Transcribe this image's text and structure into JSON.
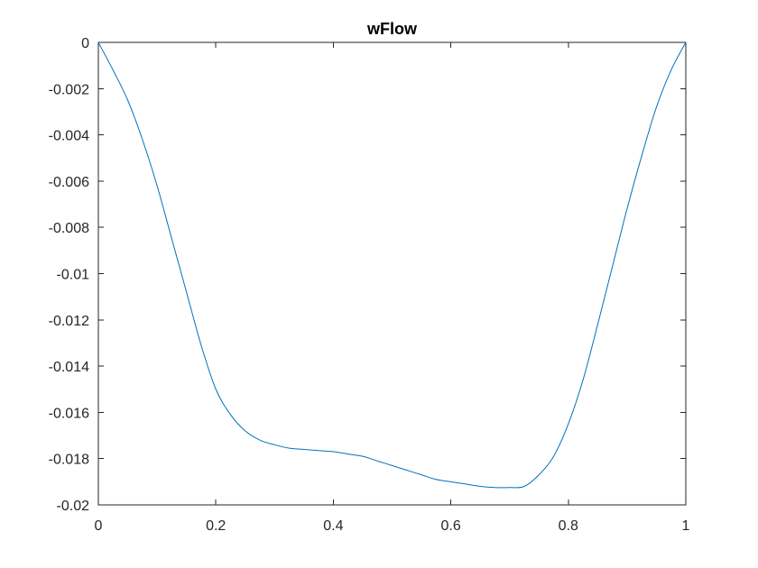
{
  "chart_data": {
    "type": "line",
    "title": "wFlow",
    "xlabel": "",
    "ylabel": "",
    "xlim": [
      0,
      1
    ],
    "ylim": [
      -0.02,
      0
    ],
    "grid": false,
    "box": true,
    "xticks": [
      0,
      0.2,
      0.4,
      0.6,
      0.8,
      1
    ],
    "xtick_labels": [
      "0",
      "0.2",
      "0.4",
      "0.6",
      "0.8",
      "1"
    ],
    "yticks": [
      0,
      -0.002,
      -0.004,
      -0.006,
      -0.008,
      -0.01,
      -0.012,
      -0.014,
      -0.016,
      -0.018,
      -0.02
    ],
    "ytick_labels": [
      "0",
      "-0.002",
      "-0.004",
      "-0.006",
      "-0.008",
      "-0.01",
      "-0.012",
      "-0.014",
      "-0.016",
      "-0.018",
      "-0.02"
    ],
    "line_color": "#0072bd",
    "series": [
      {
        "x": [
          0,
          0.025,
          0.05,
          0.075,
          0.1,
          0.125,
          0.15,
          0.175,
          0.2,
          0.225,
          0.25,
          0.275,
          0.3,
          0.325,
          0.35,
          0.375,
          0.4,
          0.425,
          0.45,
          0.475,
          0.5,
          0.525,
          0.55,
          0.575,
          0.6,
          0.625,
          0.65,
          0.675,
          0.7,
          0.725,
          0.75,
          0.775,
          0.8,
          0.825,
          0.85,
          0.875,
          0.9,
          0.925,
          0.95,
          0.975,
          1
        ],
        "y": [
          0,
          -0.0012,
          -0.0025,
          -0.0042,
          -0.0062,
          -0.0085,
          -0.0108,
          -0.0131,
          -0.015,
          -0.0161,
          -0.0168,
          -0.0172,
          -0.0174,
          -0.01755,
          -0.0176,
          -0.01765,
          -0.0177,
          -0.0178,
          -0.0179,
          -0.0181,
          -0.0183,
          -0.0185,
          -0.0187,
          -0.0189,
          -0.019,
          -0.0191,
          -0.0192,
          -0.01925,
          -0.01925,
          -0.0192,
          -0.0187,
          -0.0179,
          -0.0165,
          -0.0146,
          -0.0122,
          -0.0097,
          -0.0072,
          -0.0049,
          -0.0028,
          -0.0012,
          0
        ]
      }
    ]
  }
}
